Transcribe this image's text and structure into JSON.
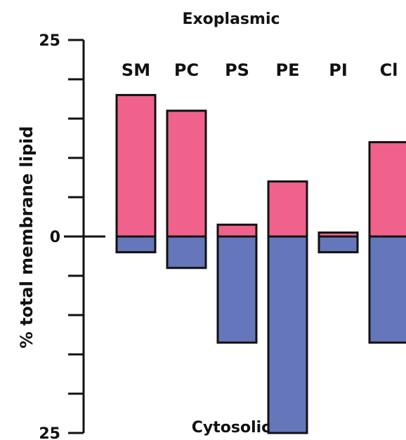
{
  "chart_data": {
    "type": "bar",
    "ylabel": "% total membrane lipid",
    "top_label": "Exoplasmic",
    "bottom_label": "Cytosolic",
    "y_ticks": [
      {
        "value": 25,
        "label": "25"
      },
      {
        "value": 0,
        "label": "0"
      },
      {
        "value": -25,
        "label": "25"
      }
    ],
    "ylim": [
      -25,
      25
    ],
    "categories": [
      "SM",
      "PC",
      "PS",
      "PE",
      "PI",
      "Cl"
    ],
    "series": [
      {
        "key": "exoplasmic",
        "values": [
          18,
          16,
          1.5,
          7,
          0.5,
          12
        ]
      },
      {
        "key": "cytosolic",
        "values": [
          -2,
          -4,
          -13.5,
          -25,
          -2,
          -13.5
        ]
      }
    ],
    "colors": {
      "exoplasmic": "#f0628c",
      "cytosolic": "#6577ba",
      "axis": "#111111"
    }
  }
}
